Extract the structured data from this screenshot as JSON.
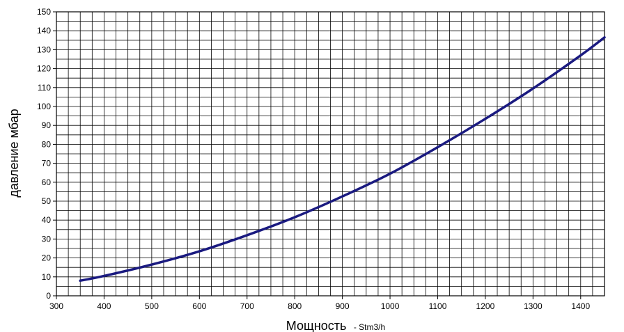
{
  "chart_data": {
    "type": "line",
    "title": "",
    "ylabel": "давление мбар",
    "xlabel": "Мощность",
    "xlabel_unit": "- Stm3/h",
    "xlim": [
      300,
      1450
    ],
    "ylim": [
      0,
      150
    ],
    "x_ticks": [
      300,
      400,
      500,
      600,
      700,
      800,
      900,
      1000,
      1100,
      1200,
      1300,
      1400
    ],
    "y_ticks": [
      0,
      10,
      20,
      30,
      40,
      50,
      60,
      70,
      80,
      90,
      100,
      110,
      120,
      130,
      140,
      150
    ],
    "grid": true,
    "legend": "none",
    "series": [
      {
        "color": "#1a1a80",
        "x": [
          350,
          400,
          500,
          600,
          700,
          800,
          900,
          1000,
          1100,
          1200,
          1300,
          1400,
          1450
        ],
        "y": [
          8,
          10.5,
          16.5,
          23.5,
          32,
          41.5,
          52.5,
          64.5,
          78.5,
          93.5,
          109.5,
          127,
          136.5
        ]
      }
    ]
  }
}
